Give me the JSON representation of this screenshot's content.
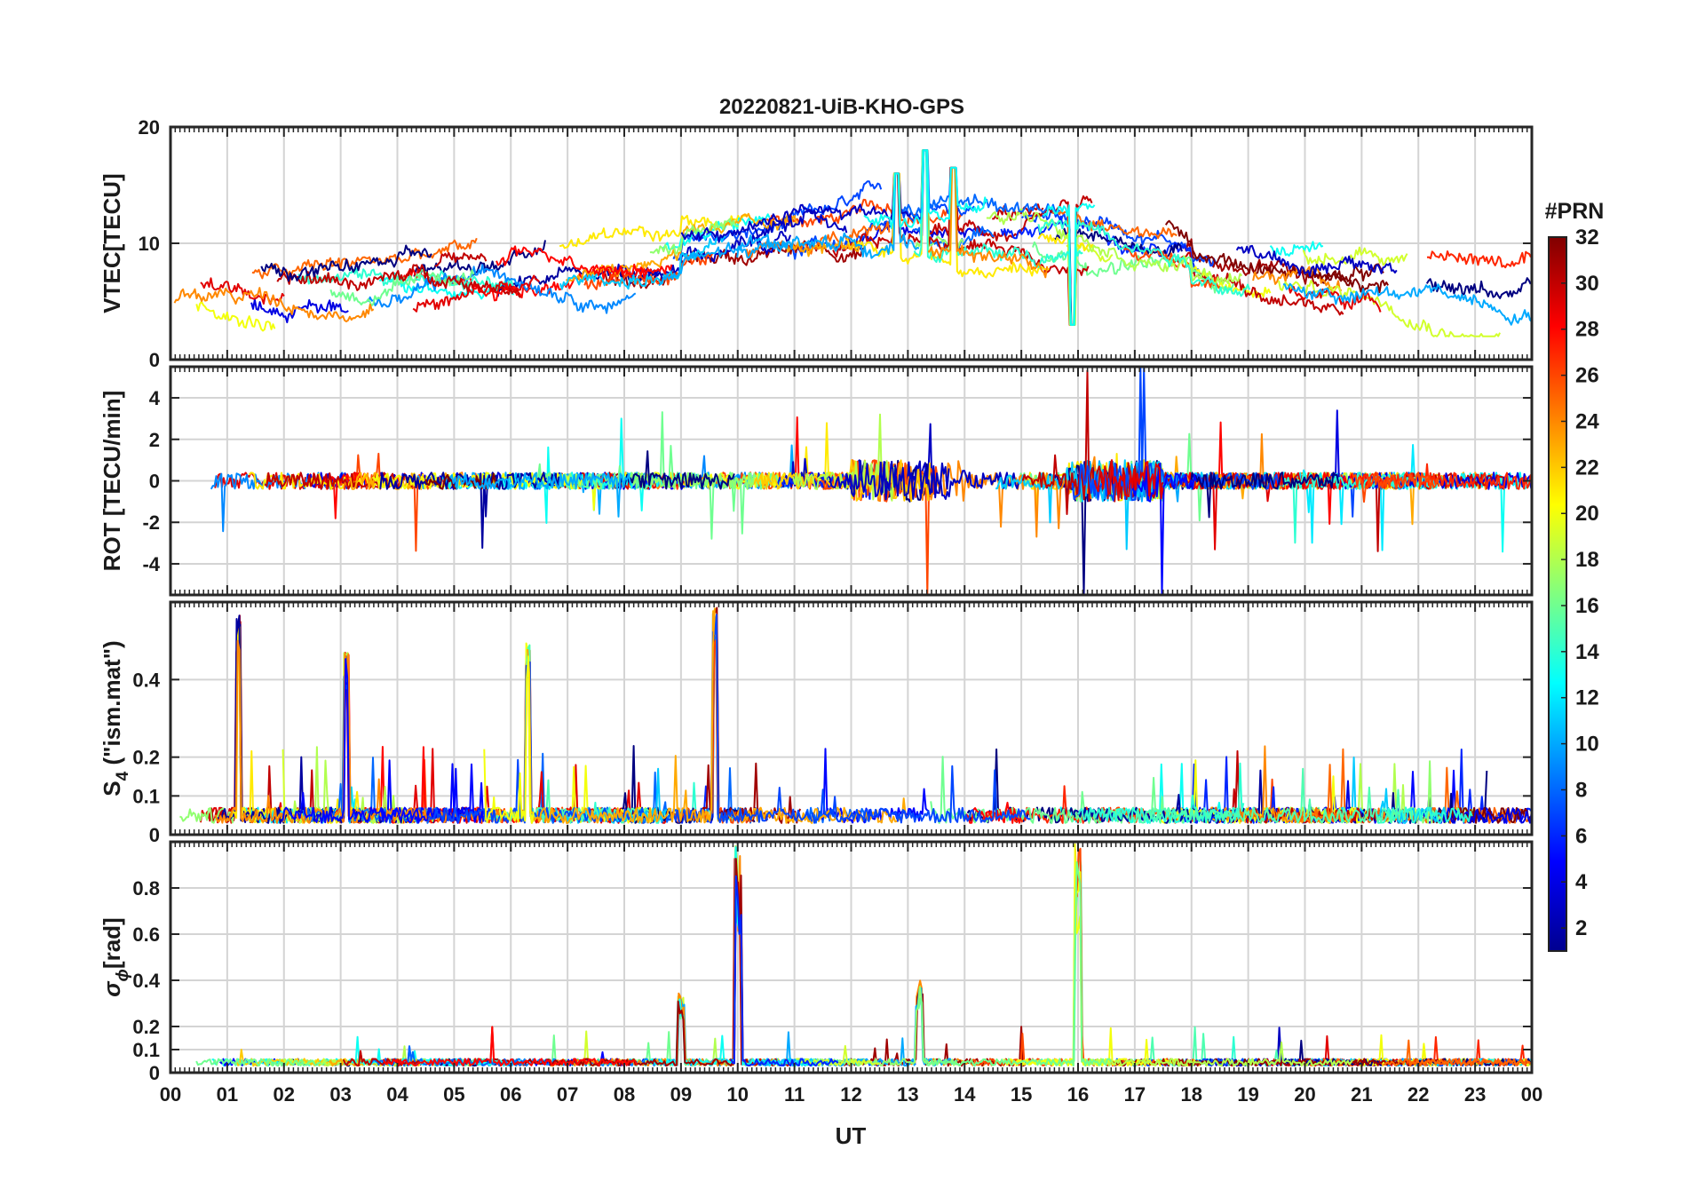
{
  "chart_data": {
    "type": "line",
    "title": "20220821-UiB-KHO-GPS",
    "xlabel": "UT",
    "x_tick_labels": [
      "00",
      "01",
      "02",
      "03",
      "04",
      "05",
      "06",
      "07",
      "08",
      "09",
      "10",
      "11",
      "12",
      "13",
      "14",
      "15",
      "16",
      "17",
      "18",
      "19",
      "20",
      "21",
      "22",
      "23",
      "00"
    ],
    "xlim": [
      0,
      24
    ],
    "grid": true,
    "colorbar": {
      "label": "#PRN",
      "range": [
        1,
        32
      ],
      "ticks": [
        "2",
        "4",
        "6",
        "8",
        "10",
        "12",
        "14",
        "16",
        "18",
        "20",
        "22",
        "24",
        "26",
        "28",
        "30",
        "32"
      ],
      "colormap": "jet"
    },
    "panels": [
      {
        "id": "vtec",
        "ylabel": "VTEC[TECU]",
        "ylim": [
          0,
          20
        ],
        "yticks": [
          "0",
          "10",
          "20"
        ],
        "description_values": {
          "typical_range": [
            4,
            14
          ],
          "peaks": [
            {
              "ut": 13.3,
              "value": 18
            },
            {
              "ut": 12.8,
              "value": 16
            },
            {
              "ut": 13.8,
              "value": 16.5
            },
            {
              "ut": 15.9,
              "value": 3
            }
          ]
        }
      },
      {
        "id": "rot",
        "ylabel": "ROT [TECU/min]",
        "ylim": [
          -5.5,
          5.5
        ],
        "yticks": [
          "-4",
          "-2",
          "0",
          "2",
          "4"
        ],
        "description_values": {
          "typical_range": [
            -0.5,
            0.5
          ],
          "max_spike": 4.9,
          "min_spike": -5.5
        }
      },
      {
        "id": "s4",
        "ylabel_main": "S",
        "ylabel_sub": "4",
        "ylabel_rest": " (\"ism.mat\")",
        "ylim": [
          0,
          0.6
        ],
        "yticks": [
          "0",
          "0.1",
          "0.2",
          "0.4"
        ],
        "description_values": {
          "baseline": 0.03,
          "peaks": [
            {
              "ut": 1.2,
              "value": 0.57
            },
            {
              "ut": 9.6,
              "value": 0.6
            },
            {
              "ut": 6.3,
              "value": 0.5
            },
            {
              "ut": 3.1,
              "value": 0.47
            }
          ]
        }
      },
      {
        "id": "sigma",
        "ylabel_main": "σ",
        "ylabel_sub": "ϕ",
        "ylabel_rest": "[rad]",
        "ylim": [
          0,
          1
        ],
        "yticks": [
          "0",
          "0.1",
          "0.2",
          "0.4",
          "0.6",
          "0.8"
        ],
        "description_values": {
          "baseline": 0.03,
          "peaks": [
            {
              "ut": 10.0,
              "value": 1.0
            },
            {
              "ut": 16.0,
              "value": 1.0
            },
            {
              "ut": 9.0,
              "value": 0.35
            },
            {
              "ut": 13.2,
              "value": 0.43
            }
          ]
        }
      }
    ]
  }
}
